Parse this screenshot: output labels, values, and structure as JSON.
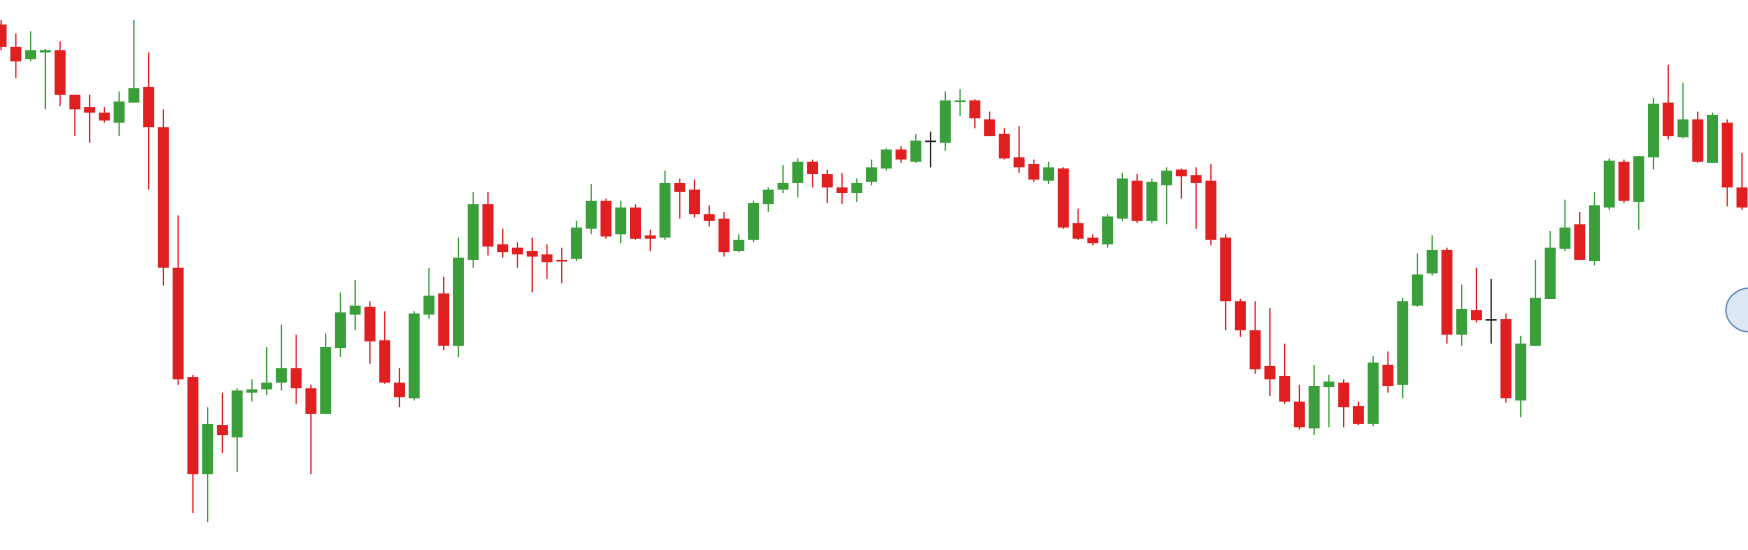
{
  "chart_data": {
    "type": "candlestick",
    "open": [
      478,
      458,
      447,
      453,
      455,
      415,
      404,
      399,
      390,
      408,
      422,
      386,
      260,
      162,
      75,
      119,
      108,
      148,
      151,
      157,
      170,
      152,
      129,
      188,
      218,
      225,
      195,
      157,
      143,
      218,
      237,
      190,
      267,
      317,
      281,
      278,
      275,
      272,
      267,
      268,
      295,
      320,
      290,
      314,
      289,
      287,
      336,
      330,
      308,
      304,
      275,
      285,
      317,
      330,
      336,
      355,
      344,
      332,
      327,
      337,
      349,
      366,
      355,
      374,
      372,
      409,
      410,
      393,
      380,
      359,
      353,
      338,
      349,
      300,
      287,
      281,
      304,
      338,
      302,
      334,
      348,
      343,
      338,
      287,
      230,
      204,
      172,
      163,
      140,
      116,
      153,
      157,
      136,
      120,
      173,
      155,
      226,
      255,
      276,
      200,
      222,
      214,
      214,
      141,
      190,
      232,
      277,
      299,
      266,
      314,
      355,
      319,
      359,
      408,
      377,
      393,
      354,
      390,
      332
    ],
    "high": [
      482,
      470,
      472,
      456,
      463,
      415,
      415,
      404,
      418,
      482,
      453,
      402,
      307,
      164,
      135,
      148,
      152,
      160,
      189,
      209,
      200,
      155,
      201,
      238,
      249,
      230,
      221,
      170,
      221,
      260,
      252,
      287,
      328,
      328,
      295,
      283,
      287,
      281,
      278,
      302,
      335,
      322,
      320,
      317,
      294,
      347,
      340,
      339,
      316,
      310,
      290,
      320,
      332,
      352,
      358,
      357,
      348,
      345,
      340,
      357,
      367,
      369,
      380,
      382,
      418,
      420,
      411,
      400,
      385,
      387,
      357,
      355,
      350,
      313,
      290,
      308,
      345,
      344,
      340,
      350,
      349,
      350,
      353,
      290,
      232,
      230,
      224,
      192,
      155,
      173,
      164,
      160,
      140,
      181,
      185,
      233,
      273,
      289,
      278,
      245,
      260,
      250,
      219,
      199,
      267,
      293,
      321,
      310,
      328,
      358,
      357,
      360,
      412,
      442,
      426,
      400,
      399,
      393,
      363
    ],
    "low": [
      455,
      430,
      445,
      402,
      405,
      378,
      372,
      390,
      378,
      408,
      330,
      244,
      155,
      40,
      32,
      94,
      77,
      140,
      146,
      150,
      138,
      75,
      129,
      180,
      204,
      174,
      156,
      135,
      141,
      214,
      186,
      180,
      260,
      271,
      269,
      260,
      238,
      250,
      246,
      266,
      290,
      286,
      282,
      285,
      275,
      285,
      304,
      305,
      297,
      270,
      274,
      283,
      310,
      327,
      323,
      332,
      318,
      317,
      319,
      334,
      347,
      354,
      354,
      350,
      365,
      396,
      385,
      378,
      357,
      345,
      337,
      335,
      295,
      285,
      280,
      278,
      302,
      300,
      300,
      299,
      322,
      295,
      280,
      204,
      198,
      165,
      145,
      138,
      115,
      110,
      117,
      117,
      119,
      118,
      148,
      143,
      225,
      253,
      192,
      190,
      211,
      192,
      139,
      126,
      190,
      232,
      275,
      267,
      262,
      312,
      318,
      294,
      348,
      375,
      376,
      354,
      354,
      315,
      312
    ],
    "close": [
      458,
      445,
      455,
      455,
      415,
      402,
      399,
      392,
      409,
      421,
      386,
      260,
      160,
      75,
      120,
      110,
      150,
      151,
      157,
      170,
      152,
      129,
      189,
      220,
      226,
      194,
      157,
      144,
      219,
      235,
      190,
      269,
      317,
      279,
      274,
      272,
      270,
      265,
      266,
      296,
      320,
      288,
      314,
      286,
      286,
      336,
      328,
      308,
      302,
      274,
      285,
      318,
      330,
      336,
      355,
      344,
      332,
      327,
      336,
      350,
      366,
      357,
      374,
      374,
      410,
      410,
      394,
      378,
      358,
      350,
      339,
      350,
      296,
      286,
      282,
      306,
      340,
      302,
      337,
      347,
      342,
      336,
      285,
      230,
      204,
      169,
      160,
      140,
      117,
      154,
      158,
      135,
      120,
      175,
      154,
      230,
      254,
      276,
      200,
      223,
      213,
      214,
      143,
      192,
      233,
      278,
      296,
      267,
      316,
      356,
      320,
      360,
      407,
      378,
      393,
      355,
      397,
      332,
      314
    ],
    "up_color": "#3a9e3a",
    "down_color": "#e02020",
    "doji_color": "#222222",
    "ylim": [
      7,
      500
    ]
  }
}
